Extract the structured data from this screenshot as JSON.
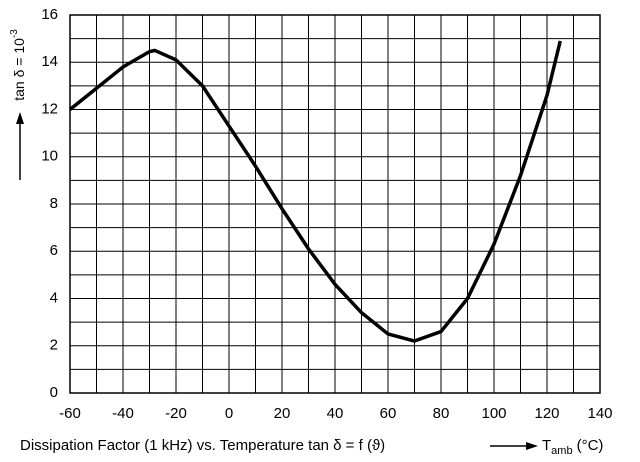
{
  "chart_data": {
    "type": "line",
    "caption": "Dissipation Factor (1 kHz) vs. Temperature tan δ = f (ϑ)",
    "x_label": {
      "symbol": "T",
      "subscript": "amb",
      "unit": "(°C)"
    },
    "y_label": {
      "base": "tan δ = 10",
      "exponent": "-3"
    },
    "x": [
      -60,
      -50,
      -40,
      -30,
      -28,
      -20,
      -10,
      0,
      10,
      20,
      30,
      40,
      50,
      60,
      70,
      80,
      90,
      100,
      110,
      120,
      125
    ],
    "series": [
      {
        "name": "tan δ",
        "color": "#000000",
        "values": [
          12.0,
          12.9,
          13.8,
          14.45,
          14.5,
          14.1,
          13.0,
          11.3,
          9.6,
          7.8,
          6.1,
          4.6,
          3.4,
          2.5,
          2.2,
          2.6,
          4.0,
          6.3,
          9.2,
          12.6,
          14.9
        ]
      }
    ],
    "xlim": [
      -60,
      140
    ],
    "ylim": [
      0,
      16
    ],
    "xticks": [
      -60,
      -40,
      -20,
      0,
      20,
      40,
      60,
      80,
      100,
      120,
      140
    ],
    "yticks": [
      0,
      2,
      4,
      6,
      8,
      10,
      12,
      14,
      16
    ],
    "x_minor_ticks": [
      -50,
      -30,
      -10,
      10,
      30,
      50,
      70,
      90,
      110,
      130
    ],
    "y_minor_ticks": [
      1,
      3,
      5,
      7,
      9,
      11,
      13,
      15
    ],
    "grid": true
  }
}
